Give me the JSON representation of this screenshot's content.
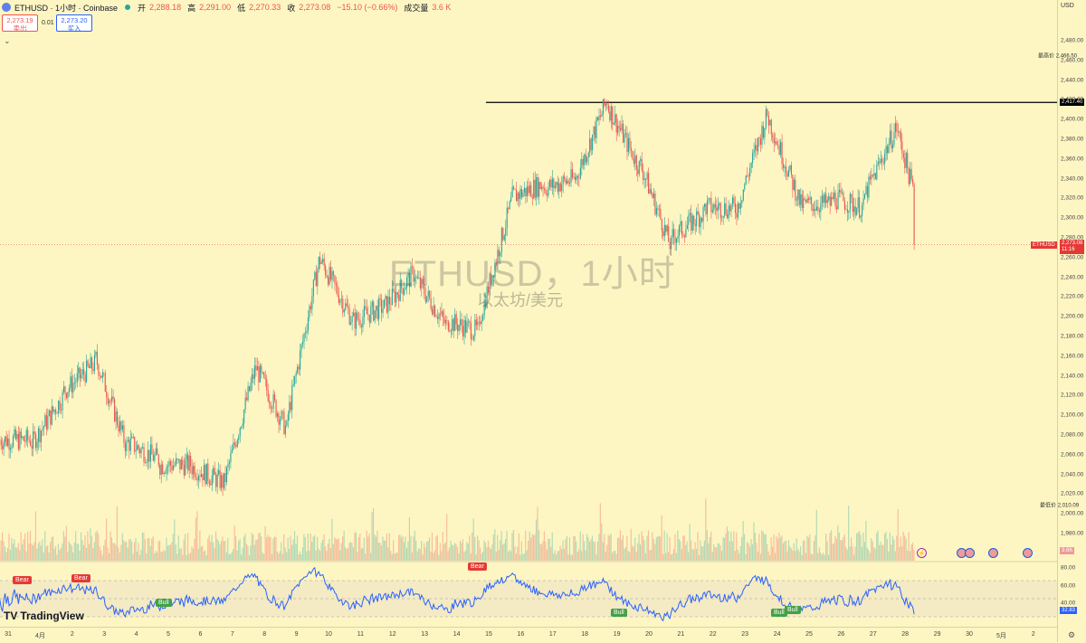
{
  "header": {
    "symbol_title": "ETHUSD · 1小时 · Coinbase",
    "open_label": "开",
    "open_value": "2,288.18",
    "high_label": "高",
    "high_value": "2,291.00",
    "low_label": "低",
    "low_value": "2,270.33",
    "close_label": "收",
    "close_value": "2,273.08",
    "change_value": "−15.10 (−0.66%)",
    "volume_label": "成交量",
    "volume_value": "3.6 K"
  },
  "trade": {
    "sell_price": "2,273.19",
    "sell_label": "卖出",
    "spread": "0.01",
    "buy_price": "2,273.20",
    "buy_label": "买入"
  },
  "collapse_icon": "chevron-down-icon",
  "watermark": {
    "line1": "ETHUSD，1小时",
    "line2": "以太坊/美元"
  },
  "yaxis": {
    "currency": "USD",
    "ticks": [
      "2,480.00",
      "2,460.00",
      "2,440.00",
      "2,420.00",
      "2,400.00",
      "2,380.00",
      "2,360.00",
      "2,340.00",
      "2,320.00",
      "2,300.00",
      "2,280.00",
      "2,260.00",
      "2,240.00",
      "2,220.00",
      "2,200.00",
      "2,180.00",
      "2,160.00",
      "2,140.00",
      "2,120.00",
      "2,100.00",
      "2,080.00",
      "2,060.00",
      "2,040.00",
      "2,020.00",
      "2,000.00",
      "1,980.00"
    ],
    "high_label": "最高价",
    "high_value": "2,466.50",
    "hline_value": "2,417.40",
    "symbol_tag": "ETHUSD",
    "price_tag": "2,273.08",
    "countdown": "11:16",
    "low_label": "最低价",
    "low_value": "2,010.09",
    "volume_tag": "3.6K",
    "rsi_ticks": [
      "80.00",
      "60.00",
      "40.00"
    ],
    "rsi_value": "32.83"
  },
  "xaxis": {
    "labels": [
      "31",
      "4月",
      "2",
      "3",
      "4",
      "5",
      "6",
      "7",
      "8",
      "9",
      "10",
      "11",
      "12",
      "13",
      "14",
      "15",
      "16",
      "17",
      "18",
      "19",
      "20",
      "21",
      "22",
      "23",
      "24",
      "25",
      "26",
      "27",
      "28",
      "29",
      "30",
      "5月",
      "2"
    ]
  },
  "rsi_signals": [
    {
      "text": "Bear",
      "type": "bear"
    },
    {
      "text": "Bear",
      "type": "bear"
    },
    {
      "text": "Bull",
      "type": "bull"
    },
    {
      "text": "Bear",
      "type": "bear"
    },
    {
      "text": "Bull",
      "type": "bull"
    },
    {
      "text": "Bull",
      "type": "bull"
    },
    {
      "text": "Bull",
      "type": "bull"
    }
  ],
  "branding": {
    "logo_text": "TradingView"
  },
  "settings_icon": "gear-icon",
  "event_icons": [
    "flash-icon",
    "us-flag-icon",
    "us-flag-icon",
    "us-flag-icon",
    "us-flag-icon"
  ],
  "colors": {
    "up": "#26a69a",
    "down": "#ef5350",
    "rsi": "#2962ff",
    "background": "#fdf6c3",
    "hline": "#000000"
  },
  "chart_data": {
    "type": "candlestick",
    "symbol": "ETHUSD",
    "interval": "1小时",
    "exchange": "Coinbase",
    "ylim": [
      1970,
      2490
    ],
    "highest": 2466.5,
    "lowest": 2010.09,
    "horizontal_line": 2417.4,
    "last_price": 2273.08,
    "x": [
      "3-31",
      "4-01",
      "4-02",
      "4-03",
      "4-04",
      "4-05",
      "4-06",
      "4-07",
      "4-08",
      "4-09",
      "4-10",
      "4-11",
      "4-12",
      "4-13",
      "4-14",
      "4-15",
      "4-16",
      "4-17",
      "4-18",
      "4-19",
      "4-20",
      "4-21",
      "4-22",
      "4-23",
      "4-24",
      "4-25",
      "4-26",
      "4-27",
      "4-28"
    ],
    "close": [
      2075,
      2118,
      2152,
      2068,
      2055,
      2050,
      2032,
      2145,
      2085,
      2255,
      2200,
      2210,
      2245,
      2190,
      2185,
      2315,
      2335,
      2340,
      2420,
      2352,
      2270,
      2305,
      2310,
      2405,
      2318,
      2315,
      2310,
      2390,
      2273
    ],
    "rsi": {
      "name": "RSI",
      "ylim": [
        20,
        90
      ],
      "last": 32.83
    }
  }
}
